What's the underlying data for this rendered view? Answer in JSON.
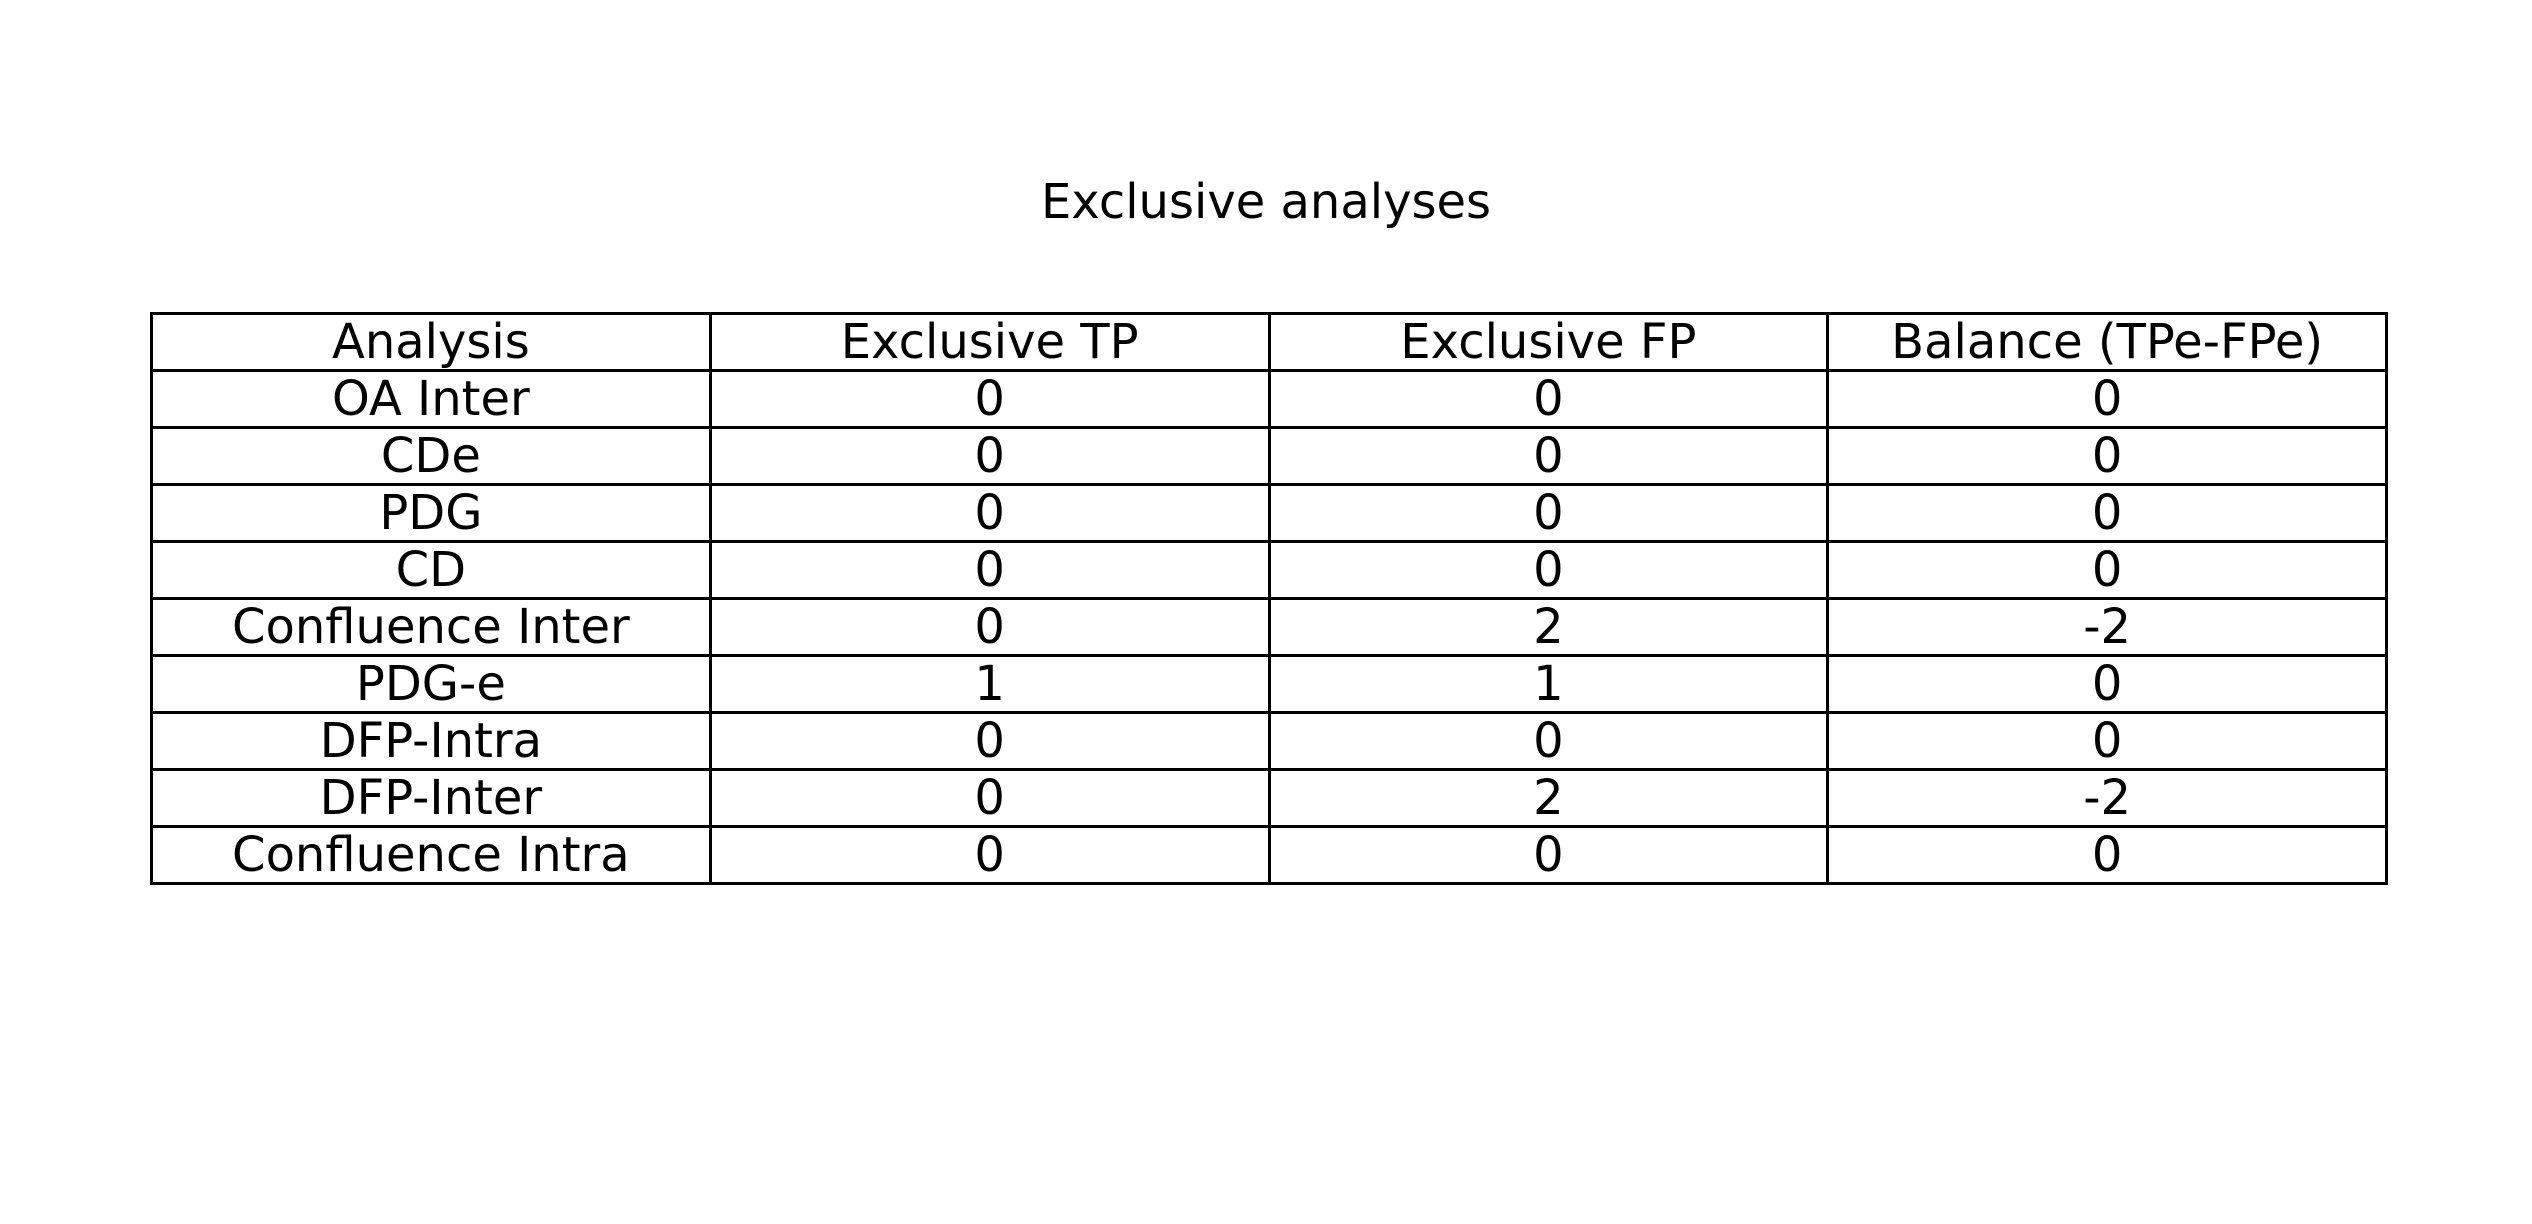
{
  "chart_data": {
    "type": "table",
    "title": "Exclusive analyses",
    "columns": [
      "Analysis",
      "Exclusive TP",
      "Exclusive FP",
      "Balance (TPe-FPe)"
    ],
    "rows": [
      [
        "OA Inter",
        "0",
        "0",
        "0"
      ],
      [
        "CDe",
        "0",
        "0",
        "0"
      ],
      [
        "PDG",
        "0",
        "0",
        "0"
      ],
      [
        "CD",
        "0",
        "0",
        "0"
      ],
      [
        "Confluence Inter",
        "0",
        "2",
        "-2"
      ],
      [
        "PDG-e",
        "1",
        "1",
        "0"
      ],
      [
        "DFP-Intra",
        "0",
        "0",
        "0"
      ],
      [
        "DFP-Inter",
        "0",
        "2",
        "-2"
      ],
      [
        "Confluence Intra",
        "0",
        "0",
        "0"
      ]
    ]
  }
}
